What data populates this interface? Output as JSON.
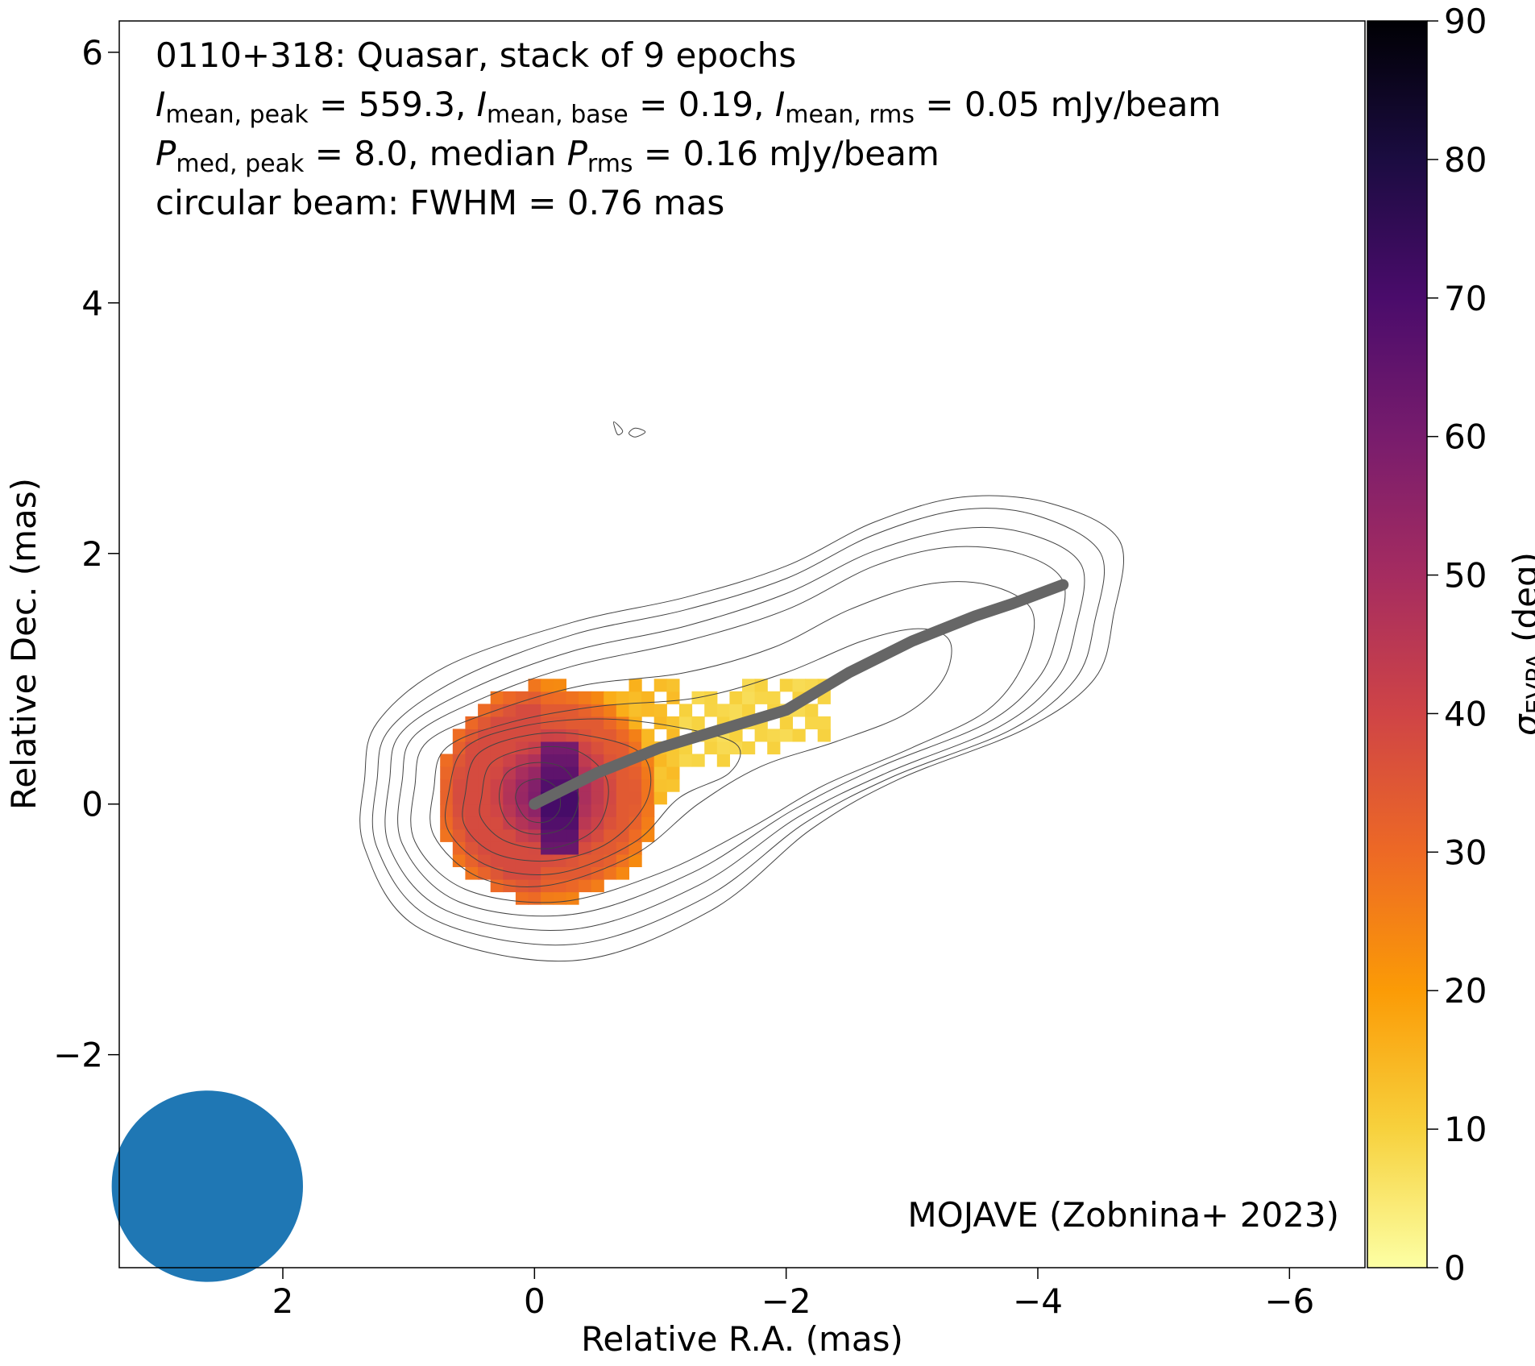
{
  "chart_data": {
    "type": "heatmap",
    "title_lines": [
      {
        "parts": [
          {
            "t": "0110+318: Quasar, stack of 9 epochs"
          }
        ]
      },
      {
        "parts": [
          {
            "t": "I",
            "i": true
          },
          {
            "t": "mean, peak",
            "sub": true
          },
          {
            "t": " = 559.3, "
          },
          {
            "t": "I",
            "i": true
          },
          {
            "t": "mean, base",
            "sub": true
          },
          {
            "t": " = 0.19, "
          },
          {
            "t": "I",
            "i": true
          },
          {
            "t": "mean, rms",
            "sub": true
          },
          {
            "t": " = 0.05 mJy/beam"
          }
        ]
      },
      {
        "parts": [
          {
            "t": "P",
            "i": true
          },
          {
            "t": "med, peak",
            "sub": true
          },
          {
            "t": " = 8.0, median "
          },
          {
            "t": "P",
            "i": true
          },
          {
            "t": "rms",
            "sub": true
          },
          {
            "t": " = 0.16 mJy/beam"
          }
        ]
      },
      {
        "parts": [
          {
            "t": "circular beam: FWHM = 0.76 mas"
          }
        ]
      }
    ],
    "credit": "MOJAVE (Zobnina+ 2023)",
    "xlabel": "Relative R.A. (mas)",
    "ylabel": "Relative Dec. (mas)",
    "xlim": [
      3.3,
      -6.6
    ],
    "ylim": [
      -3.7,
      6.25
    ],
    "xticks": [
      2,
      0,
      -2,
      -4,
      -6
    ],
    "xtick_labels": [
      "2",
      "0",
      "−2",
      "−4",
      "−6"
    ],
    "yticks": [
      -2,
      0,
      2,
      4,
      6
    ],
    "ytick_labels": [
      "−2",
      "0",
      "2",
      "4",
      "6"
    ],
    "grid": false,
    "colorbar": {
      "label_main": "σ",
      "label_sub": "EVPA",
      "label_unit": " (deg)",
      "min": 0,
      "max": 90,
      "ticks": [
        0,
        10,
        20,
        30,
        40,
        50,
        60,
        70,
        80,
        90
      ],
      "tick_labels": [
        "0",
        "10",
        "20",
        "30",
        "40",
        "50",
        "60",
        "70",
        "80",
        "90"
      ],
      "colormap": [
        "#fcffa4",
        "#f7d13d",
        "#fb9b06",
        "#ed6925",
        "#cf4446",
        "#a52c60",
        "#781c6d",
        "#4a0c6b",
        "#1b0c41",
        "#000004"
      ]
    },
    "beam": {
      "x": 2.6,
      "y": -3.05,
      "fwhm": 0.76,
      "color": "#1f77b4"
    },
    "ridgeline": {
      "color": "#666666",
      "points": [
        [
          0,
          0
        ],
        [
          -0.5,
          0.25
        ],
        [
          -1.0,
          0.45
        ],
        [
          -1.5,
          0.6
        ],
        [
          -2.0,
          0.75
        ],
        [
          -2.5,
          1.05
        ],
        [
          -3.0,
          1.3
        ],
        [
          -3.5,
          1.5
        ],
        [
          -3.8,
          1.6
        ],
        [
          -4.2,
          1.75
        ]
      ]
    },
    "contours": [
      [
        [
          1.35,
          0.2
        ],
        [
          1.25,
          0.65
        ],
        [
          0.7,
          1.1
        ],
        [
          -0.3,
          1.45
        ],
        [
          -1.2,
          1.65
        ],
        [
          -2.0,
          1.9
        ],
        [
          -2.7,
          2.25
        ],
        [
          -3.4,
          2.45
        ],
        [
          -4.1,
          2.4
        ],
        [
          -4.65,
          2.1
        ],
        [
          -4.6,
          1.5
        ],
        [
          -4.45,
          1.0
        ],
        [
          -3.9,
          0.6
        ],
        [
          -2.9,
          0.2
        ],
        [
          -2.2,
          -0.2
        ],
        [
          -1.4,
          -0.85
        ],
        [
          -0.3,
          -1.25
        ],
        [
          0.9,
          -1.0
        ],
        [
          1.35,
          -0.35
        ]
      ],
      [
        [
          1.25,
          0.2
        ],
        [
          1.15,
          0.6
        ],
        [
          0.6,
          1.0
        ],
        [
          -0.3,
          1.35
        ],
        [
          -1.2,
          1.55
        ],
        [
          -2.0,
          1.8
        ],
        [
          -2.7,
          2.15
        ],
        [
          -3.4,
          2.35
        ],
        [
          -4.0,
          2.3
        ],
        [
          -4.5,
          2.0
        ],
        [
          -4.45,
          1.45
        ],
        [
          -4.3,
          1.0
        ],
        [
          -3.8,
          0.6
        ],
        [
          -2.85,
          0.22
        ],
        [
          -2.15,
          -0.15
        ],
        [
          -1.35,
          -0.75
        ],
        [
          -0.3,
          -1.12
        ],
        [
          0.8,
          -0.92
        ],
        [
          1.25,
          -0.35
        ]
      ],
      [
        [
          1.15,
          0.2
        ],
        [
          1.05,
          0.58
        ],
        [
          0.5,
          0.92
        ],
        [
          -0.3,
          1.22
        ],
        [
          -1.2,
          1.42
        ],
        [
          -2.0,
          1.68
        ],
        [
          -2.7,
          2.02
        ],
        [
          -3.4,
          2.2
        ],
        [
          -3.95,
          2.15
        ],
        [
          -4.35,
          1.9
        ],
        [
          -4.3,
          1.4
        ],
        [
          -4.15,
          1.0
        ],
        [
          -3.7,
          0.62
        ],
        [
          -2.8,
          0.25
        ],
        [
          -2.1,
          -0.1
        ],
        [
          -1.3,
          -0.65
        ],
        [
          -0.3,
          -1.0
        ],
        [
          0.7,
          -0.85
        ],
        [
          1.15,
          -0.35
        ]
      ],
      [
        [
          1.05,
          0.2
        ],
        [
          0.95,
          0.55
        ],
        [
          0.4,
          0.85
        ],
        [
          -0.3,
          1.1
        ],
        [
          -1.2,
          1.3
        ],
        [
          -2.0,
          1.55
        ],
        [
          -2.7,
          1.9
        ],
        [
          -3.3,
          2.05
        ],
        [
          -3.85,
          2.0
        ],
        [
          -4.2,
          1.78
        ],
        [
          -4.15,
          1.35
        ],
        [
          -4.0,
          1.0
        ],
        [
          -3.6,
          0.65
        ],
        [
          -2.75,
          0.3
        ],
        [
          -2.05,
          -0.05
        ],
        [
          -1.25,
          -0.55
        ],
        [
          -0.3,
          -0.88
        ],
        [
          0.6,
          -0.78
        ],
        [
          1.05,
          -0.32
        ]
      ],
      [
        [
          0.95,
          0.15
        ],
        [
          0.85,
          0.5
        ],
        [
          0.3,
          0.75
        ],
        [
          -0.4,
          0.95
        ],
        [
          -1.2,
          1.05
        ],
        [
          -1.9,
          1.25
        ],
        [
          -2.5,
          1.55
        ],
        [
          -3.1,
          1.75
        ],
        [
          -3.6,
          1.75
        ],
        [
          -3.95,
          1.55
        ],
        [
          -3.9,
          1.15
        ],
        [
          -3.6,
          0.75
        ],
        [
          -3.0,
          0.45
        ],
        [
          -2.3,
          0.15
        ],
        [
          -1.7,
          -0.2
        ],
        [
          -1.0,
          -0.55
        ],
        [
          -0.2,
          -0.78
        ],
        [
          0.55,
          -0.68
        ],
        [
          0.95,
          -0.3
        ]
      ],
      [
        [
          0.8,
          0.12
        ],
        [
          0.7,
          0.45
        ],
        [
          0.2,
          0.65
        ],
        [
          -0.5,
          0.78
        ],
        [
          -1.3,
          0.85
        ],
        [
          -2.0,
          1.05
        ],
        [
          -2.6,
          1.3
        ],
        [
          -3.05,
          1.4
        ],
        [
          -3.3,
          1.3
        ],
        [
          -3.25,
          1.0
        ],
        [
          -2.95,
          0.72
        ],
        [
          -2.4,
          0.5
        ],
        [
          -1.8,
          0.3
        ],
        [
          -1.3,
          0.0
        ],
        [
          -0.8,
          -0.4
        ],
        [
          -0.1,
          -0.65
        ],
        [
          0.45,
          -0.58
        ],
        [
          0.8,
          -0.25
        ]
      ],
      [
        [
          0.68,
          0.1
        ],
        [
          0.55,
          0.45
        ],
        [
          0.1,
          0.62
        ],
        [
          -0.5,
          0.68
        ],
        [
          -1.1,
          0.62
        ],
        [
          -1.6,
          0.48
        ],
        [
          -1.55,
          0.25
        ],
        [
          -1.15,
          0.05
        ],
        [
          -0.8,
          -0.3
        ],
        [
          -0.2,
          -0.55
        ],
        [
          0.35,
          -0.5
        ],
        [
          0.68,
          -0.22
        ]
      ],
      [
        [
          0.55,
          0.08
        ],
        [
          0.45,
          0.4
        ],
        [
          0.05,
          0.55
        ],
        [
          -0.4,
          0.55
        ],
        [
          -0.85,
          0.4
        ],
        [
          -0.9,
          0.05
        ],
        [
          -0.6,
          -0.3
        ],
        [
          -0.15,
          -0.45
        ],
        [
          0.3,
          -0.4
        ],
        [
          0.55,
          -0.18
        ]
      ],
      [
        [
          0.42,
          0.06
        ],
        [
          0.34,
          0.33
        ],
        [
          0.0,
          0.45
        ],
        [
          -0.35,
          0.42
        ],
        [
          -0.58,
          0.18
        ],
        [
          -0.5,
          -0.18
        ],
        [
          -0.15,
          -0.35
        ],
        [
          0.22,
          -0.3
        ],
        [
          0.42,
          -0.12
        ]
      ],
      [
        [
          0.28,
          0.04
        ],
        [
          0.22,
          0.25
        ],
        [
          0.0,
          0.33
        ],
        [
          -0.24,
          0.28
        ],
        [
          -0.35,
          0.05
        ],
        [
          -0.25,
          -0.18
        ],
        [
          0.0,
          -0.24
        ],
        [
          0.2,
          -0.16
        ]
      ],
      [
        [
          0.15,
          0.04
        ],
        [
          0.1,
          0.16
        ],
        [
          -0.05,
          0.2
        ],
        [
          -0.18,
          0.12
        ],
        [
          -0.2,
          -0.04
        ],
        [
          -0.1,
          -0.14
        ],
        [
          0.06,
          -0.12
        ]
      ],
      [
        [
          -0.63,
          3.05
        ],
        [
          -0.7,
          2.98
        ],
        [
          -0.66,
          2.95
        ]
      ],
      [
        [
          -0.75,
          2.96
        ],
        [
          -0.8,
          3.0
        ],
        [
          -0.88,
          2.97
        ],
        [
          -0.8,
          2.93
        ]
      ]
    ]
  }
}
